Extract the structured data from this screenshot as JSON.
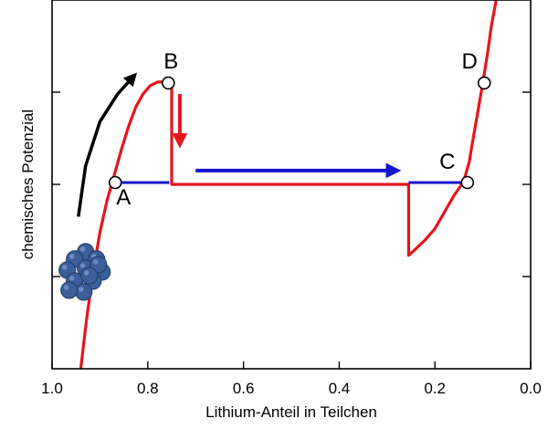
{
  "chart_data": {
    "type": "line",
    "title": "",
    "xlabel": "Lithium-Anteil in Teilchen",
    "ylabel": "chemisches Potenzial",
    "xlim": [
      1.0,
      0.0
    ],
    "x_reversed": true,
    "x_ticks": [
      1.0,
      0.8,
      0.6,
      0.4,
      0.2,
      0.0
    ],
    "x_tick_labels": [
      "1.0",
      "0.8",
      "0.6",
      "0.4",
      "0.2",
      "0.0"
    ],
    "ylim": [
      0,
      4
    ],
    "y_ticks": [
      1,
      2,
      3
    ],
    "y_tick_labels_shown": false,
    "grid": false,
    "colors": {
      "curve": "#e8141c",
      "plateau": "#1515cc",
      "arrow_blue": "#1515cc",
      "arrow_red": "#e8141c",
      "arrow_black": "#000000",
      "cluster": "#3a5f9a",
      "marker_fill": "#ffffff"
    },
    "series": [
      {
        "style": "red-curve",
        "x": [
          0.94,
          0.928,
          0.915,
          0.9,
          0.885,
          0.87,
          0.855,
          0.84,
          0.825,
          0.81,
          0.795,
          0.78,
          0.765,
          0.752,
          0.75
        ],
        "y": [
          0.0,
          0.53,
          1.02,
          1.48,
          1.83,
          2.1,
          2.38,
          2.63,
          2.84,
          2.98,
          3.07,
          3.11,
          3.11,
          3.1,
          3.1
        ]
      },
      {
        "style": "red-curve",
        "x": [
          0.75,
          0.75,
          0.255,
          0.255,
          0.24,
          0.22,
          0.2,
          0.18,
          0.16,
          0.14,
          0.128,
          0.12,
          0.11,
          0.1,
          0.09,
          0.082,
          0.072
        ],
        "y": [
          3.1,
          2.0,
          2.0,
          1.23,
          1.3,
          1.4,
          1.52,
          1.7,
          1.88,
          2.03,
          2.25,
          2.5,
          2.8,
          3.1,
          3.42,
          3.72,
          4.0
        ]
      },
      {
        "style": "blue-line",
        "x": [
          0.87,
          0.755
        ],
        "y": [
          2.02,
          2.02
        ]
      },
      {
        "style": "blue-line",
        "x": [
          0.255,
          0.132
        ],
        "y": [
          2.02,
          2.02
        ]
      }
    ],
    "points": [
      {
        "label": "A",
        "x": 0.868,
        "y": 2.02
      },
      {
        "label": "B",
        "x": 0.757,
        "y": 3.1
      },
      {
        "label": "C",
        "x": 0.132,
        "y": 2.02
      },
      {
        "label": "D",
        "x": 0.097,
        "y": 3.1
      }
    ],
    "annotations": [
      {
        "type": "arrow",
        "color": "black",
        "x": [
          0.945,
          0.93,
          0.9,
          0.863,
          0.828
        ],
        "y": [
          1.65,
          2.2,
          2.68,
          2.98,
          3.18
        ]
      },
      {
        "type": "arrow",
        "color": "red",
        "x": [
          0.733,
          0.733
        ],
        "y": [
          2.98,
          2.44
        ]
      },
      {
        "type": "arrow",
        "color": "blue",
        "x": [
          0.7,
          0.28
        ],
        "y": [
          2.15,
          2.15
        ]
      },
      {
        "type": "particle-cluster",
        "icon": "lithium-particle-cluster-icon",
        "x": 0.93,
        "y": 1.05
      }
    ]
  }
}
